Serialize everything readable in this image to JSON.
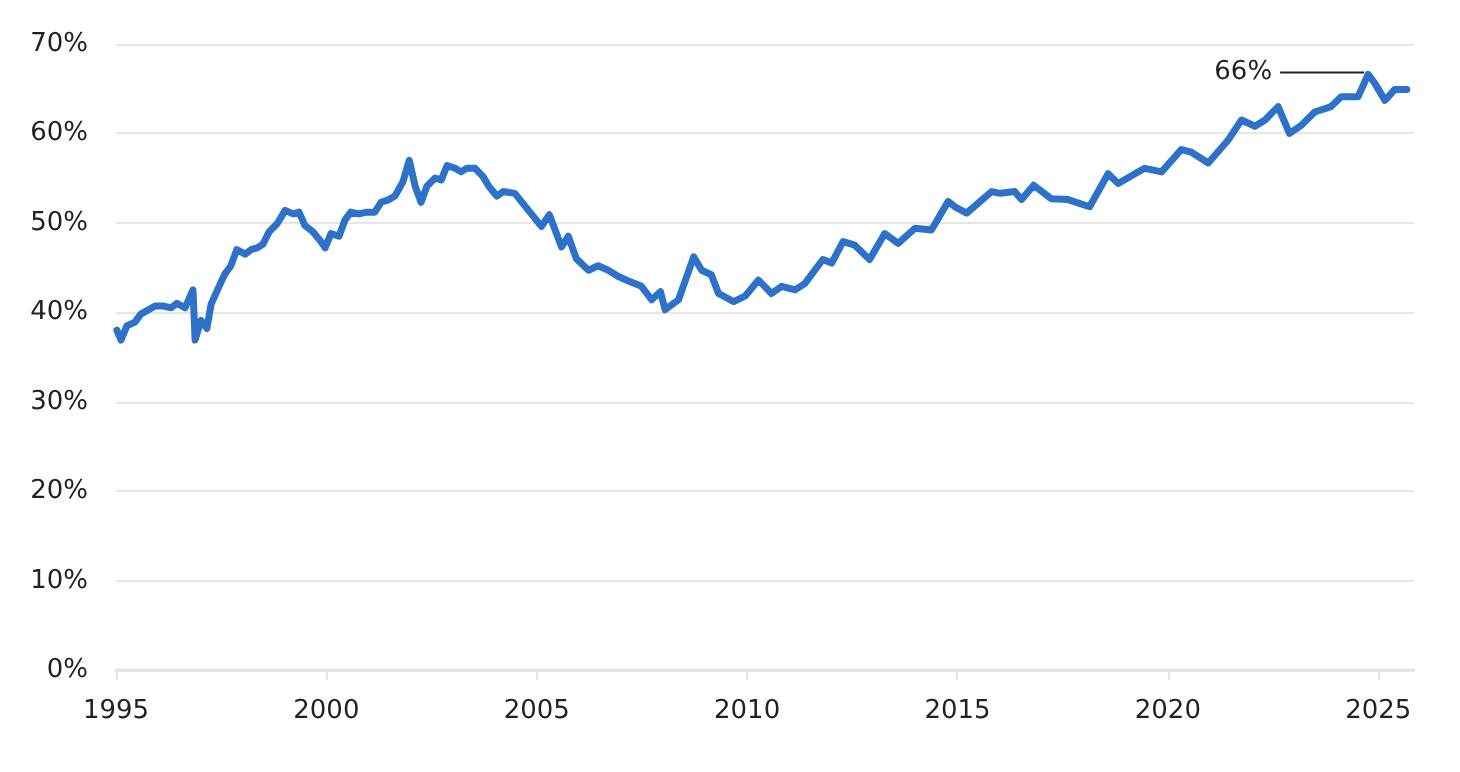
{
  "chart_data": {
    "type": "line",
    "x": [
      1995.02,
      1995.12,
      1995.26,
      1995.45,
      1995.59,
      1995.78,
      1995.93,
      1996.12,
      1996.31,
      1996.45,
      1996.64,
      1996.83,
      1996.88,
      1997.02,
      1997.16,
      1997.26,
      1997.45,
      1997.59,
      1997.73,
      1997.87,
      1998.07,
      1998.21,
      1998.35,
      1998.49,
      1998.64,
      1998.83,
      1999.02,
      1999.21,
      1999.35,
      1999.49,
      1999.68,
      1999.87,
      1999.97,
      2000.11,
      2000.3,
      2000.44,
      2000.58,
      2000.77,
      2000.96,
      2001.15,
      2001.3,
      2001.49,
      2001.63,
      2001.82,
      2001.97,
      2002.11,
      2002.25,
      2002.39,
      2002.58,
      2002.73,
      2002.87,
      2003.06,
      2003.2,
      2003.34,
      2003.53,
      2003.72,
      2003.86,
      2004.05,
      2004.2,
      2004.48,
      2005.11,
      2005.3,
      2005.59,
      2005.75,
      2005.94,
      2006.23,
      2006.46,
      2006.7,
      2006.94,
      2007.18,
      2007.49,
      2007.73,
      2007.94,
      2008.05,
      2008.37,
      2008.73,
      2008.92,
      2009.15,
      2009.32,
      2009.68,
      2009.95,
      2010.27,
      2010.58,
      2010.82,
      2011.14,
      2011.37,
      2011.8,
      2012.01,
      2012.28,
      2012.56,
      2012.91,
      2013.27,
      2013.59,
      2013.99,
      2014.38,
      2014.78,
      2014.97,
      2015.22,
      2015.81,
      2016.02,
      2016.36,
      2016.52,
      2016.81,
      2017.23,
      2017.63,
      2018.14,
      2018.58,
      2018.82,
      2019.22,
      2019.45,
      2019.85,
      2020.32,
      2020.56,
      2020.96,
      2021.44,
      2021.75,
      2022.07,
      2022.31,
      2022.62,
      2022.89,
      2023.17,
      2023.49,
      2023.88,
      2024.12,
      2024.52,
      2024.76,
      2024.92,
      2025.16,
      2025.39,
      2025.68
    ],
    "series": [
      {
        "color": "#2d72c8",
        "values": [
          38.0,
          36.9,
          38.5,
          38.9,
          39.8,
          40.3,
          40.7,
          40.7,
          40.5,
          41.0,
          40.5,
          42.5,
          36.9,
          39.1,
          38.2,
          40.9,
          42.9,
          44.3,
          45.2,
          47.0,
          46.5,
          47.0,
          47.2,
          47.6,
          49.0,
          49.9,
          51.4,
          51.0,
          51.2,
          49.7,
          49.0,
          47.9,
          47.2,
          48.8,
          48.5,
          50.3,
          51.2,
          51.0,
          51.2,
          51.2,
          52.3,
          52.6,
          53.0,
          54.6,
          57.0,
          54.1,
          52.3,
          54.1,
          55.0,
          54.8,
          56.4,
          56.1,
          55.7,
          56.1,
          56.1,
          55.2,
          54.1,
          53.0,
          53.5,
          53.3,
          49.6,
          50.9,
          47.3,
          48.5,
          46.0,
          44.7,
          45.2,
          44.7,
          44.0,
          43.5,
          42.9,
          41.4,
          42.3,
          40.3,
          41.4,
          46.2,
          44.7,
          44.2,
          42.1,
          41.2,
          41.8,
          43.6,
          42.1,
          42.9,
          42.5,
          43.2,
          45.9,
          45.5,
          47.9,
          47.5,
          45.9,
          48.8,
          47.7,
          49.4,
          49.2,
          52.4,
          51.7,
          51.1,
          53.5,
          53.3,
          53.5,
          52.6,
          54.2,
          52.7,
          52.6,
          51.8,
          55.5,
          54.4,
          55.5,
          56.1,
          55.7,
          58.2,
          57.9,
          56.7,
          59.3,
          61.5,
          60.8,
          61.5,
          63.0,
          60.0,
          60.9,
          62.4,
          63.0,
          64.1,
          64.1,
          66.6,
          65.6,
          63.7,
          64.9,
          64.9
        ]
      }
    ],
    "xlim": [
      1995,
      2025.85
    ],
    "ylim": [
      0,
      70
    ],
    "xticks": [
      1995,
      2000,
      2005,
      2010,
      2015,
      2020,
      2025
    ],
    "yticks": [
      {
        "value": 0,
        "label": "0%"
      },
      {
        "value": 10,
        "label": "10%"
      },
      {
        "value": 20,
        "label": "20%"
      },
      {
        "value": 30,
        "label": "30%"
      },
      {
        "value": 40,
        "label": "40%"
      },
      {
        "value": 50,
        "label": "50%"
      },
      {
        "value": 60,
        "label": "60%"
      },
      {
        "value": 70,
        "label": "70%"
      }
    ],
    "annotations": [
      {
        "text": "66%",
        "x": 2024.76,
        "y": 66.6
      }
    ],
    "grid": "y",
    "marker": "none",
    "line_style": "solid"
  }
}
